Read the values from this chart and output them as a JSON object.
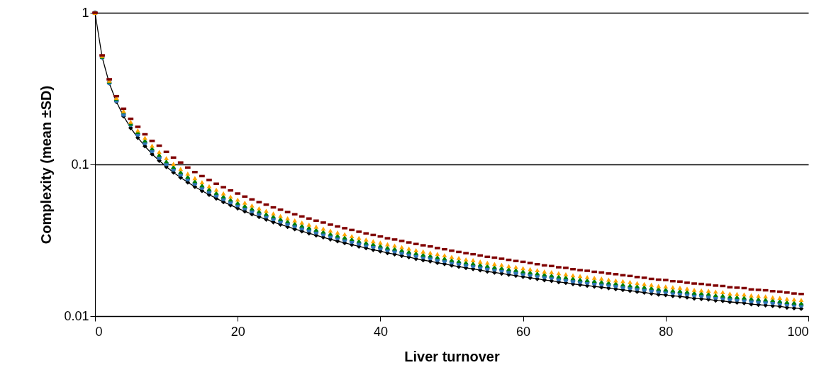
{
  "chart_data": {
    "type": "scatter",
    "xlabel": "Liver turnover",
    "ylabel": "Complexity (mean ±SD)",
    "log": "y",
    "grid": "y",
    "xlim": [
      0,
      100
    ],
    "xticks": [
      0,
      20,
      40,
      60,
      80,
      100
    ],
    "ylim": [
      0.01,
      1
    ],
    "yticks": [
      0.01,
      0.1,
      1
    ],
    "x": [
      0,
      1,
      2,
      3,
      4,
      5,
      6,
      7,
      8,
      9,
      10,
      11,
      12,
      13,
      14,
      15,
      16,
      17,
      18,
      19,
      20,
      21,
      22,
      23,
      24,
      25,
      26,
      27,
      28,
      29,
      30,
      31,
      32,
      33,
      34,
      35,
      36,
      37,
      38,
      39,
      40,
      41,
      42,
      43,
      44,
      45,
      46,
      47,
      48,
      49,
      50,
      51,
      52,
      53,
      54,
      55,
      56,
      57,
      58,
      59,
      60,
      61,
      62,
      63,
      64,
      65,
      66,
      67,
      68,
      69,
      70,
      71,
      72,
      73,
      74,
      75,
      76,
      77,
      78,
      79,
      80,
      81,
      82,
      83,
      84,
      85,
      86,
      87,
      88,
      89,
      90,
      91,
      92,
      93,
      94,
      95,
      96,
      97,
      98,
      99
    ],
    "series": [
      {
        "type": "line",
        "marker": "diamond",
        "line_style": "solid",
        "color": "#000000",
        "values": [
          1,
          0.509,
          0.343,
          0.259,
          0.208,
          0.174,
          0.15,
          0.132,
          0.117,
          0.106,
          0.0965,
          0.0886,
          0.082,
          0.0763,
          0.0713,
          0.067,
          0.0632,
          0.0597,
          0.0566,
          0.0539,
          0.0514,
          0.0491,
          0.047,
          0.0451,
          0.0434,
          0.0417,
          0.0402,
          0.0388,
          0.0375,
          0.0363,
          0.0352,
          0.0341,
          0.0331,
          0.0321,
          0.0312,
          0.0304,
          0.0296,
          0.0288,
          0.0281,
          0.0274,
          0.0268,
          0.0261,
          0.0256,
          0.025,
          0.0245,
          0.0239,
          0.0234,
          0.023,
          0.0225,
          0.0221,
          0.0216,
          0.0212,
          0.0208,
          0.0205,
          0.0201,
          0.0197,
          0.0194,
          0.0191,
          0.0188,
          0.0185,
          0.0182,
          0.0179,
          0.0176,
          0.0173,
          0.0171,
          0.0168,
          0.0166,
          0.0163,
          0.0161,
          0.0159,
          0.0157,
          0.0155,
          0.0153,
          0.0151,
          0.0149,
          0.0147,
          0.0145,
          0.0143,
          0.0141,
          0.0139,
          0.0138,
          0.0136,
          0.0135,
          0.0133,
          0.0131,
          0.013,
          0.0129,
          0.0127,
          0.0126,
          0.0124,
          0.0123,
          0.0122,
          0.012,
          0.0119,
          0.0118,
          0.0117,
          0.0116,
          0.0114,
          0.0113,
          0.0112
        ]
      },
      {
        "marker": "circle",
        "color": "#2e75b6",
        "values": [
          1,
          0.509,
          0.346,
          0.264,
          0.214,
          0.183,
          0.158,
          0.139,
          0.123,
          0.111,
          0.101,
          0.093,
          0.0861,
          0.0801,
          0.0749,
          0.0704,
          0.0664,
          0.0627,
          0.0594,
          0.0566,
          0.054,
          0.0516,
          0.0494,
          0.0474,
          0.0456,
          0.0438,
          0.0422,
          0.0407,
          0.0394,
          0.0381,
          0.037,
          0.0358,
          0.0348,
          0.0337,
          0.0328,
          0.0319,
          0.0311,
          0.0302,
          0.0295,
          0.0288,
          0.0281,
          0.0274,
          0.0269,
          0.0263,
          0.0257,
          0.0251,
          0.0246,
          0.0242,
          0.0236,
          0.0232,
          0.0227,
          0.0223,
          0.0218,
          0.0215,
          0.0211,
          0.0207,
          0.0204,
          0.0201,
          0.0197,
          0.0194,
          0.0191,
          0.0188,
          0.0185,
          0.0182,
          0.018,
          0.0176,
          0.0174,
          0.0171,
          0.0169,
          0.0167,
          0.0165,
          0.0163,
          0.0161,
          0.0159,
          0.0156,
          0.0154,
          0.0152,
          0.015,
          0.0148,
          0.0146,
          0.0145,
          0.0143,
          0.0142,
          0.014,
          0.0138,
          0.0137,
          0.0135,
          0.0133,
          0.0132,
          0.013,
          0.0129,
          0.0128,
          0.0126,
          0.0125,
          0.0124,
          0.0123,
          0.0122,
          0.012,
          0.0119,
          0.0118
        ]
      },
      {
        "marker": "triangle",
        "color": "#008000",
        "values": [
          1,
          0.514,
          0.353,
          0.272,
          0.223,
          0.186,
          0.164,
          0.144,
          0.128,
          0.116,
          0.105,
          0.0966,
          0.0894,
          0.0832,
          0.0777,
          0.073,
          0.0689,
          0.0651,
          0.0617,
          0.0588,
          0.056,
          0.0535,
          0.0512,
          0.0492,
          0.0473,
          0.0455,
          0.0438,
          0.0423,
          0.0409,
          0.0396,
          0.0384,
          0.0372,
          0.0361,
          0.035,
          0.034,
          0.0331,
          0.0323,
          0.0314,
          0.0306,
          0.0299,
          0.0292,
          0.0284,
          0.0279,
          0.0273,
          0.0267,
          0.0261,
          0.0255,
          0.0251,
          0.0245,
          0.0241,
          0.0235,
          0.0231,
          0.0227,
          0.0223,
          0.0219,
          0.0215,
          0.0211,
          0.0208,
          0.0205,
          0.0202,
          0.0198,
          0.0195,
          0.0192,
          0.0189,
          0.0186,
          0.0183,
          0.0181,
          0.0178,
          0.0175,
          0.0173,
          0.0171,
          0.0169,
          0.0167,
          0.0165,
          0.0162,
          0.016,
          0.0158,
          0.0156,
          0.0154,
          0.0152,
          0.015,
          0.0148,
          0.0147,
          0.0145,
          0.0143,
          0.0142,
          0.0141,
          0.0138,
          0.0137,
          0.0135,
          0.0134,
          0.0133,
          0.0131,
          0.013,
          0.0129,
          0.0128,
          0.0126,
          0.0124,
          0.0123,
          0.0122
        ]
      },
      {
        "marker": "triangle",
        "color": "#ffa500",
        "values": [
          1,
          0.519,
          0.357,
          0.275,
          0.225,
          0.191,
          0.168,
          0.15,
          0.133,
          0.121,
          0.11,
          0.101,
          0.0935,
          0.087,
          0.0813,
          0.0764,
          0.072,
          0.0681,
          0.0645,
          0.0614,
          0.0586,
          0.056,
          0.0536,
          0.0514,
          0.0495,
          0.0475,
          0.0458,
          0.0442,
          0.0428,
          0.0414,
          0.0401,
          0.0389,
          0.0377,
          0.0366,
          0.0356,
          0.0347,
          0.0337,
          0.0328,
          0.032,
          0.0312,
          0.0306,
          0.0298,
          0.0292,
          0.0285,
          0.0279,
          0.0272,
          0.0267,
          0.0262,
          0.0257,
          0.0252,
          0.0246,
          0.0242,
          0.0237,
          0.0234,
          0.0229,
          0.0225,
          0.0221,
          0.0218,
          0.0214,
          0.0211,
          0.0207,
          0.0204,
          0.0201,
          0.0197,
          0.0195,
          0.0192,
          0.0189,
          0.0186,
          0.0184,
          0.0181,
          0.0179,
          0.0177,
          0.0174,
          0.0172,
          0.017,
          0.0168,
          0.0165,
          0.0163,
          0.0161,
          0.0158,
          0.0157,
          0.0155,
          0.0154,
          0.0152,
          0.0149,
          0.0148,
          0.0147,
          0.0145,
          0.0144,
          0.0141,
          0.014,
          0.0139,
          0.0137,
          0.0136,
          0.0135,
          0.0133,
          0.0132,
          0.013,
          0.0129,
          0.0128
        ]
      },
      {
        "marker": "square",
        "color": "#800000",
        "values": [
          1,
          0.524,
          0.364,
          0.282,
          0.233,
          0.2,
          0.177,
          0.158,
          0.143,
          0.133,
          0.121,
          0.111,
          0.103,
          0.0954,
          0.0891,
          0.0838,
          0.079,
          0.0746,
          0.0708,
          0.0674,
          0.0643,
          0.0614,
          0.0588,
          0.0564,
          0.0543,
          0.0521,
          0.0503,
          0.0485,
          0.0469,
          0.0454,
          0.044,
          0.0426,
          0.0414,
          0.0401,
          0.039,
          0.038,
          0.037,
          0.036,
          0.0351,
          0.0343,
          0.0335,
          0.0326,
          0.032,
          0.0313,
          0.0306,
          0.0299,
          0.0293,
          0.0288,
          0.0281,
          0.0276,
          0.027,
          0.0265,
          0.026,
          0.0256,
          0.0251,
          0.0246,
          0.0243,
          0.0239,
          0.0235,
          0.0231,
          0.0228,
          0.0224,
          0.022,
          0.0216,
          0.0214,
          0.021,
          0.0208,
          0.0204,
          0.0201,
          0.0199,
          0.0196,
          0.0194,
          0.0191,
          0.0189,
          0.0186,
          0.0184,
          0.0181,
          0.0179,
          0.0176,
          0.0174,
          0.0173,
          0.017,
          0.0169,
          0.0166,
          0.0164,
          0.0163,
          0.0161,
          0.0159,
          0.0158,
          0.0155,
          0.0154,
          0.0153,
          0.015,
          0.0149,
          0.0148,
          0.0146,
          0.0145,
          0.0143,
          0.0141,
          0.014
        ]
      }
    ]
  }
}
